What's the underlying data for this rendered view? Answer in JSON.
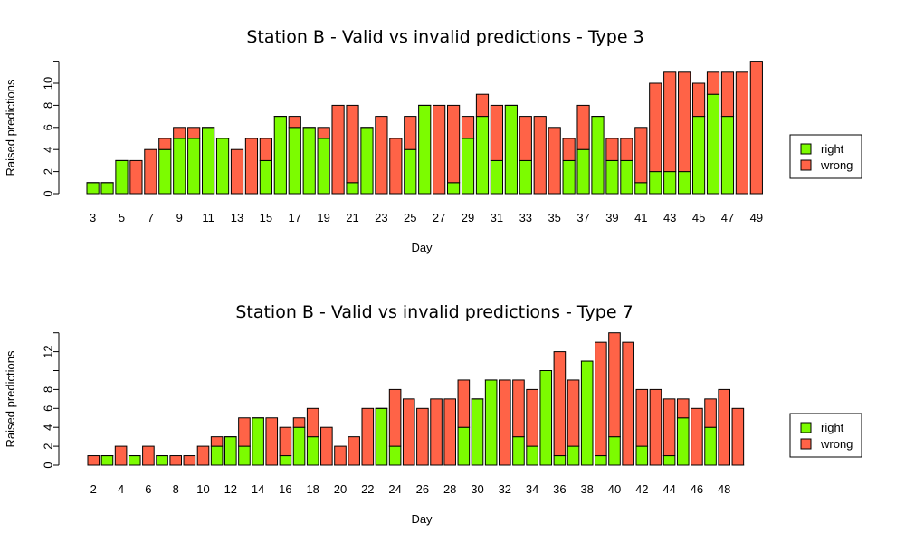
{
  "colors": {
    "right": "#7CFC00",
    "wrong": "#FF6347",
    "stroke": "#000000"
  },
  "chart_data": [
    {
      "type": "bar",
      "stacked": true,
      "title": "Station B - Valid vs invalid predictions - Type 3",
      "xlabel": "Day",
      "ylabel": "Raised predictions",
      "ylim": [
        0,
        12
      ],
      "yticks": [
        0,
        2,
        4,
        6,
        8,
        10
      ],
      "xtick_labels": [
        "3",
        "5",
        "7",
        "9",
        "11",
        "13",
        "15",
        "17",
        "19",
        "21",
        "23",
        "25",
        "27",
        "29",
        "31",
        "33",
        "35",
        "37",
        "39",
        "41",
        "43",
        "45",
        "47",
        "49"
      ],
      "legend_position": "right",
      "categories": [
        "3",
        "4",
        "5",
        "6",
        "7",
        "8",
        "9",
        "10",
        "11",
        "12",
        "13",
        "14",
        "15",
        "16",
        "17",
        "18",
        "19",
        "20",
        "21",
        "22",
        "23",
        "24",
        "25",
        "26",
        "27",
        "28",
        "29",
        "30",
        "31",
        "32",
        "33",
        "34",
        "35",
        "36",
        "37",
        "38",
        "39",
        "40",
        "41",
        "42",
        "43",
        "44",
        "45",
        "46",
        "47",
        "48",
        "49"
      ],
      "series": [
        {
          "name": "right",
          "values": [
            1,
            1,
            3,
            0,
            0,
            4,
            5,
            5,
            6,
            5,
            0,
            0,
            3,
            7,
            6,
            6,
            5,
            0,
            1,
            6,
            0,
            0,
            4,
            8,
            0,
            1,
            5,
            7,
            3,
            8,
            3,
            0,
            0,
            3,
            4,
            7,
            3,
            3,
            1,
            2,
            2,
            2,
            7,
            9,
            7,
            0,
            0
          ]
        },
        {
          "name": "wrong",
          "values": [
            0,
            0,
            0,
            3,
            4,
            1,
            1,
            1,
            0,
            0,
            4,
            5,
            2,
            0,
            1,
            0,
            1,
            8,
            7,
            0,
            7,
            5,
            3,
            0,
            8,
            7,
            2,
            2,
            5,
            0,
            4,
            7,
            6,
            2,
            4,
            0,
            2,
            2,
            5,
            8,
            9,
            9,
            3,
            2,
            4,
            11,
            12
          ]
        }
      ]
    },
    {
      "type": "bar",
      "stacked": true,
      "title": "Station B - Valid vs invalid predictions - Type 7",
      "xlabel": "Day",
      "ylabel": "Raised predictions",
      "ylim": [
        0,
        14
      ],
      "yticks": [
        0,
        2,
        4,
        6,
        8,
        12
      ],
      "xtick_labels": [
        "2",
        "4",
        "6",
        "8",
        "10",
        "12",
        "14",
        "16",
        "18",
        "20",
        "22",
        "24",
        "26",
        "28",
        "30",
        "32",
        "34",
        "36",
        "38",
        "40",
        "42",
        "44",
        "46",
        "48"
      ],
      "legend_position": "right",
      "categories": [
        "2",
        "3",
        "4",
        "5",
        "6",
        "7",
        "8",
        "9",
        "10",
        "11",
        "12",
        "13",
        "14",
        "15",
        "16",
        "17",
        "18",
        "19",
        "20",
        "21",
        "22",
        "23",
        "24",
        "25",
        "26",
        "27",
        "28",
        "29",
        "30",
        "31",
        "32",
        "33",
        "34",
        "35",
        "36",
        "37",
        "38",
        "39",
        "40",
        "41",
        "42",
        "43",
        "44",
        "45",
        "46",
        "47",
        "48",
        "49"
      ],
      "series": [
        {
          "name": "right",
          "values": [
            0,
            1,
            0,
            1,
            0,
            1,
            0,
            0,
            0,
            2,
            3,
            2,
            5,
            0,
            1,
            4,
            3,
            0,
            0,
            0,
            0,
            6,
            2,
            0,
            0,
            0,
            0,
            4,
            7,
            9,
            0,
            3,
            2,
            10,
            1,
            2,
            11,
            1,
            3,
            0,
            2,
            0,
            1,
            5,
            0,
            4,
            0,
            0
          ]
        },
        {
          "name": "wrong",
          "values": [
            1,
            0,
            2,
            0,
            2,
            0,
            1,
            1,
            2,
            1,
            0,
            3,
            0,
            5,
            3,
            1,
            3,
            4,
            2,
            3,
            6,
            0,
            6,
            7,
            6,
            7,
            7,
            5,
            0,
            0,
            9,
            6,
            6,
            0,
            11,
            7,
            0,
            12,
            11,
            13,
            6,
            8,
            6,
            2,
            6,
            3,
            8,
            6
          ]
        }
      ]
    }
  ]
}
